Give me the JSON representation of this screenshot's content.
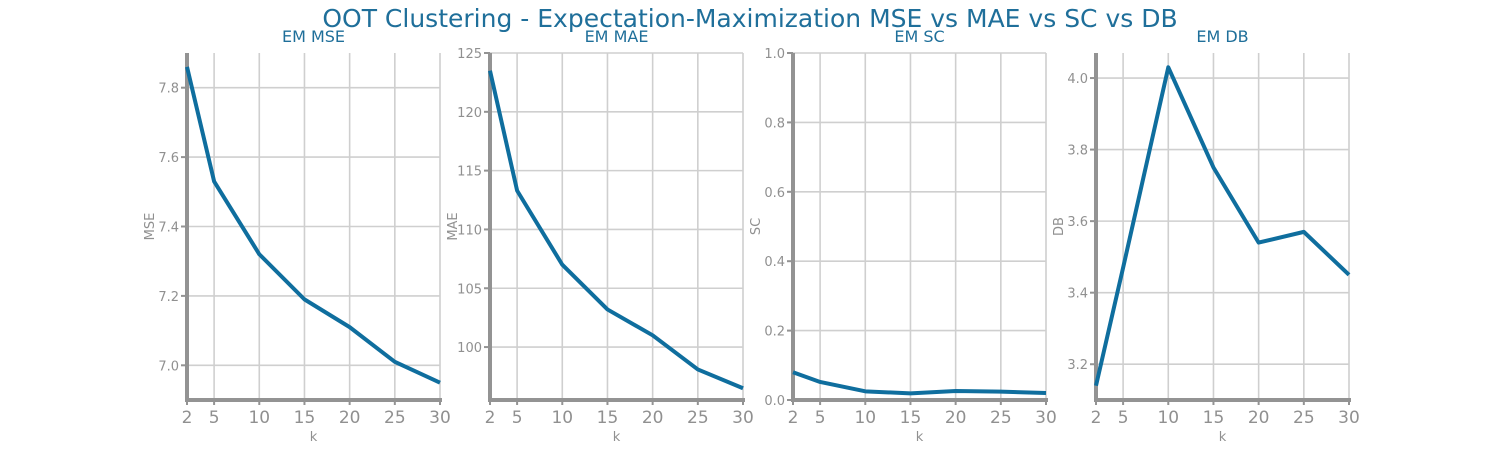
{
  "figure": {
    "title": "OOT Clustering - Expectation-Maximization MSE vs MAE vs SC vs DB"
  },
  "colors": {
    "title": "#1f6f9a",
    "line": "#0f6e9e",
    "grid": "#cfcfcf",
    "axis": "#939393",
    "tick_label": "#909090"
  },
  "chart_data": [
    {
      "type": "line",
      "title": "EM MSE",
      "xlabel": "k",
      "ylabel": "MSE",
      "x": [
        2,
        5,
        10,
        15,
        20,
        25,
        30
      ],
      "series": [
        {
          "values": [
            7.86,
            7.53,
            7.32,
            7.19,
            7.11,
            7.01,
            6.95
          ]
        }
      ],
      "xlim": [
        2,
        30
      ],
      "ylim": [
        6.9,
        7.9
      ],
      "xticks": [
        2,
        5,
        10,
        15,
        20,
        25,
        30
      ],
      "yticks": [
        7.0,
        7.2,
        7.4,
        7.6,
        7.8
      ],
      "yticklabels": [
        "7.0",
        "7.2",
        "7.4",
        "7.6",
        "7.8"
      ],
      "grid": true
    },
    {
      "type": "line",
      "title": "EM MAE",
      "xlabel": "k",
      "ylabel": "MAE",
      "x": [
        2,
        5,
        10,
        15,
        20,
        25,
        30
      ],
      "series": [
        {
          "values": [
            123.5,
            113.3,
            107.0,
            103.2,
            101.0,
            98.1,
            96.5
          ]
        }
      ],
      "xlim": [
        2,
        30
      ],
      "ylim": [
        95.5,
        125
      ],
      "xticks": [
        2,
        5,
        10,
        15,
        20,
        25,
        30
      ],
      "yticks": [
        100,
        105,
        110,
        115,
        120,
        125
      ],
      "yticklabels": [
        "100",
        "105",
        "110",
        "115",
        "120",
        "125"
      ],
      "grid": true
    },
    {
      "type": "line",
      "title": "EM SC",
      "xlabel": "k",
      "ylabel": "SC",
      "x": [
        2,
        5,
        10,
        15,
        20,
        25,
        30
      ],
      "series": [
        {
          "values": [
            0.08,
            0.052,
            0.025,
            0.019,
            0.026,
            0.024,
            0.02
          ]
        }
      ],
      "xlim": [
        2,
        30
      ],
      "ylim": [
        0,
        1
      ],
      "xticks": [
        2,
        5,
        10,
        15,
        20,
        25,
        30
      ],
      "yticks": [
        0.0,
        0.2,
        0.4,
        0.6,
        0.8,
        1.0
      ],
      "yticklabels": [
        "0.0",
        "0.2",
        "0.4",
        "0.6",
        "0.8",
        "1.0"
      ],
      "grid": true
    },
    {
      "type": "line",
      "title": "EM DB",
      "xlabel": "k",
      "ylabel": "DB",
      "x": [
        2,
        5,
        10,
        15,
        20,
        25,
        30
      ],
      "series": [
        {
          "values": [
            3.14,
            3.47,
            4.03,
            3.75,
            3.54,
            3.57,
            3.45
          ]
        }
      ],
      "xlim": [
        2,
        30
      ],
      "ylim": [
        3.1,
        4.07
      ],
      "xticks": [
        2,
        5,
        10,
        15,
        20,
        25,
        30
      ],
      "yticks": [
        3.2,
        3.4,
        3.6,
        3.8,
        4.0
      ],
      "yticklabels": [
        "3.2",
        "3.4",
        "3.6",
        "3.8",
        "4.0"
      ],
      "grid": true
    }
  ]
}
